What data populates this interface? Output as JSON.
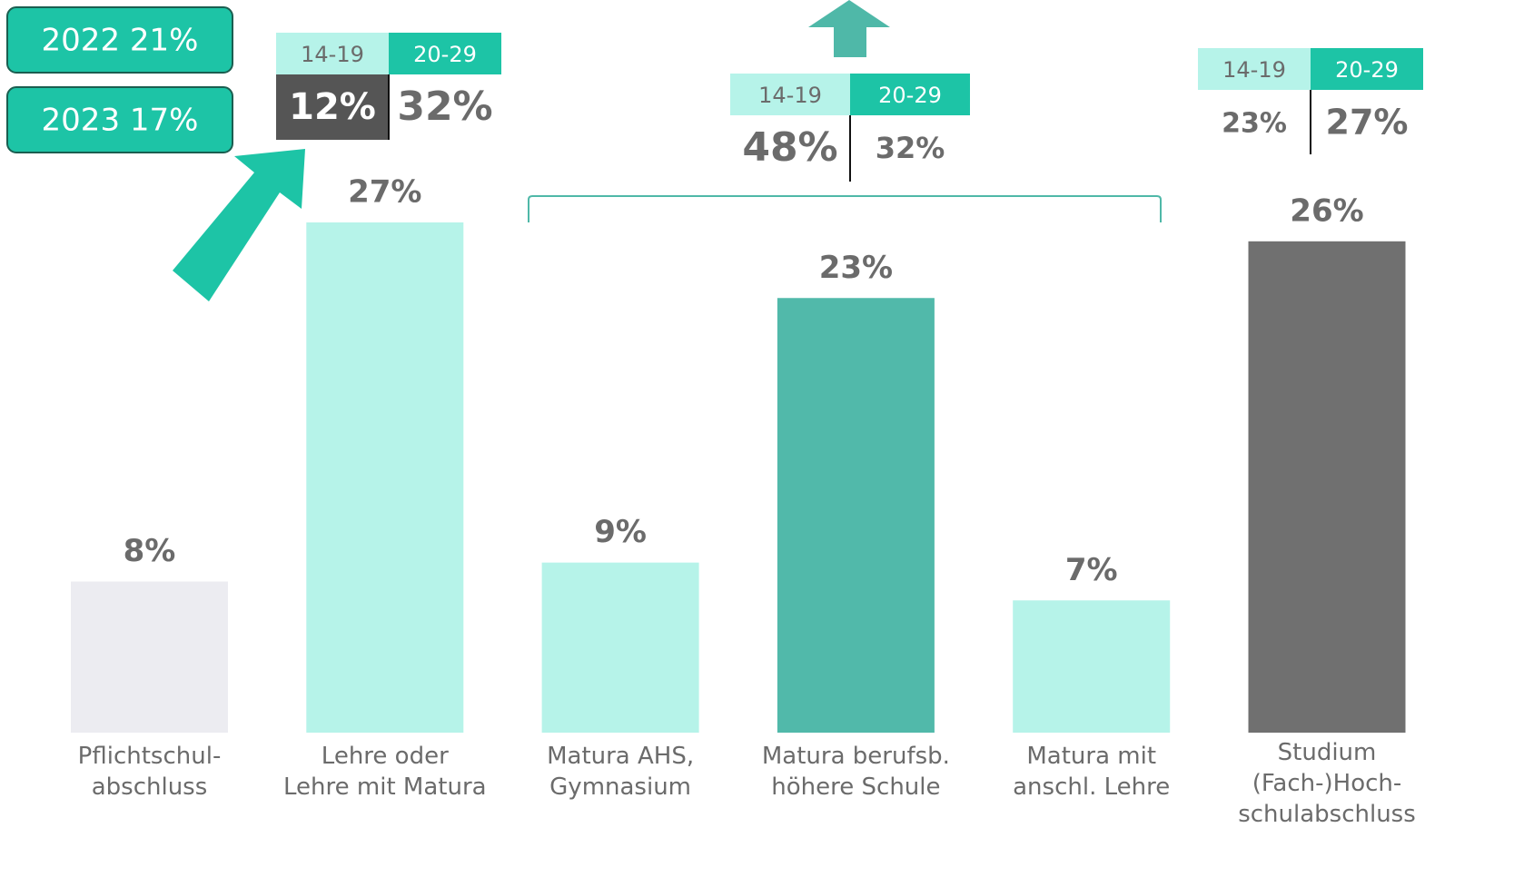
{
  "chart_data": {
    "type": "bar",
    "categories": [
      "Pflichtschul-\nabschluss",
      "Lehre oder\nLehre mit Matura",
      "Matura AHS,\nGymnasium",
      "Matura berufsb.\nhöhere Schule",
      "Matura mit\nanschl. Lehre",
      "Studium\n(Fach-)Hoch-\nschulabschluss"
    ],
    "values": [
      8,
      27,
      9,
      23,
      7,
      26
    ],
    "value_labels": [
      "8%",
      "27%",
      "9%",
      "23%",
      "7%",
      "26%"
    ],
    "colors": [
      "#ececf1",
      "#b6f3e9",
      "#b6f3e9",
      "#51b9aa",
      "#b6f3e9",
      "#707070"
    ],
    "legend_boxes": [
      "2022 21%",
      "2023 17%"
    ],
    "breakdowns": [
      {
        "headers": [
          "14-19",
          "20-29"
        ],
        "values": [
          "12%",
          "32%"
        ]
      },
      {
        "headers": [
          "14-19",
          "20-29"
        ],
        "values": [
          "48%",
          "32%"
        ]
      },
      {
        "headers": [
          "14-19",
          "20-29"
        ],
        "values": [
          "23%",
          "27%"
        ]
      }
    ]
  }
}
